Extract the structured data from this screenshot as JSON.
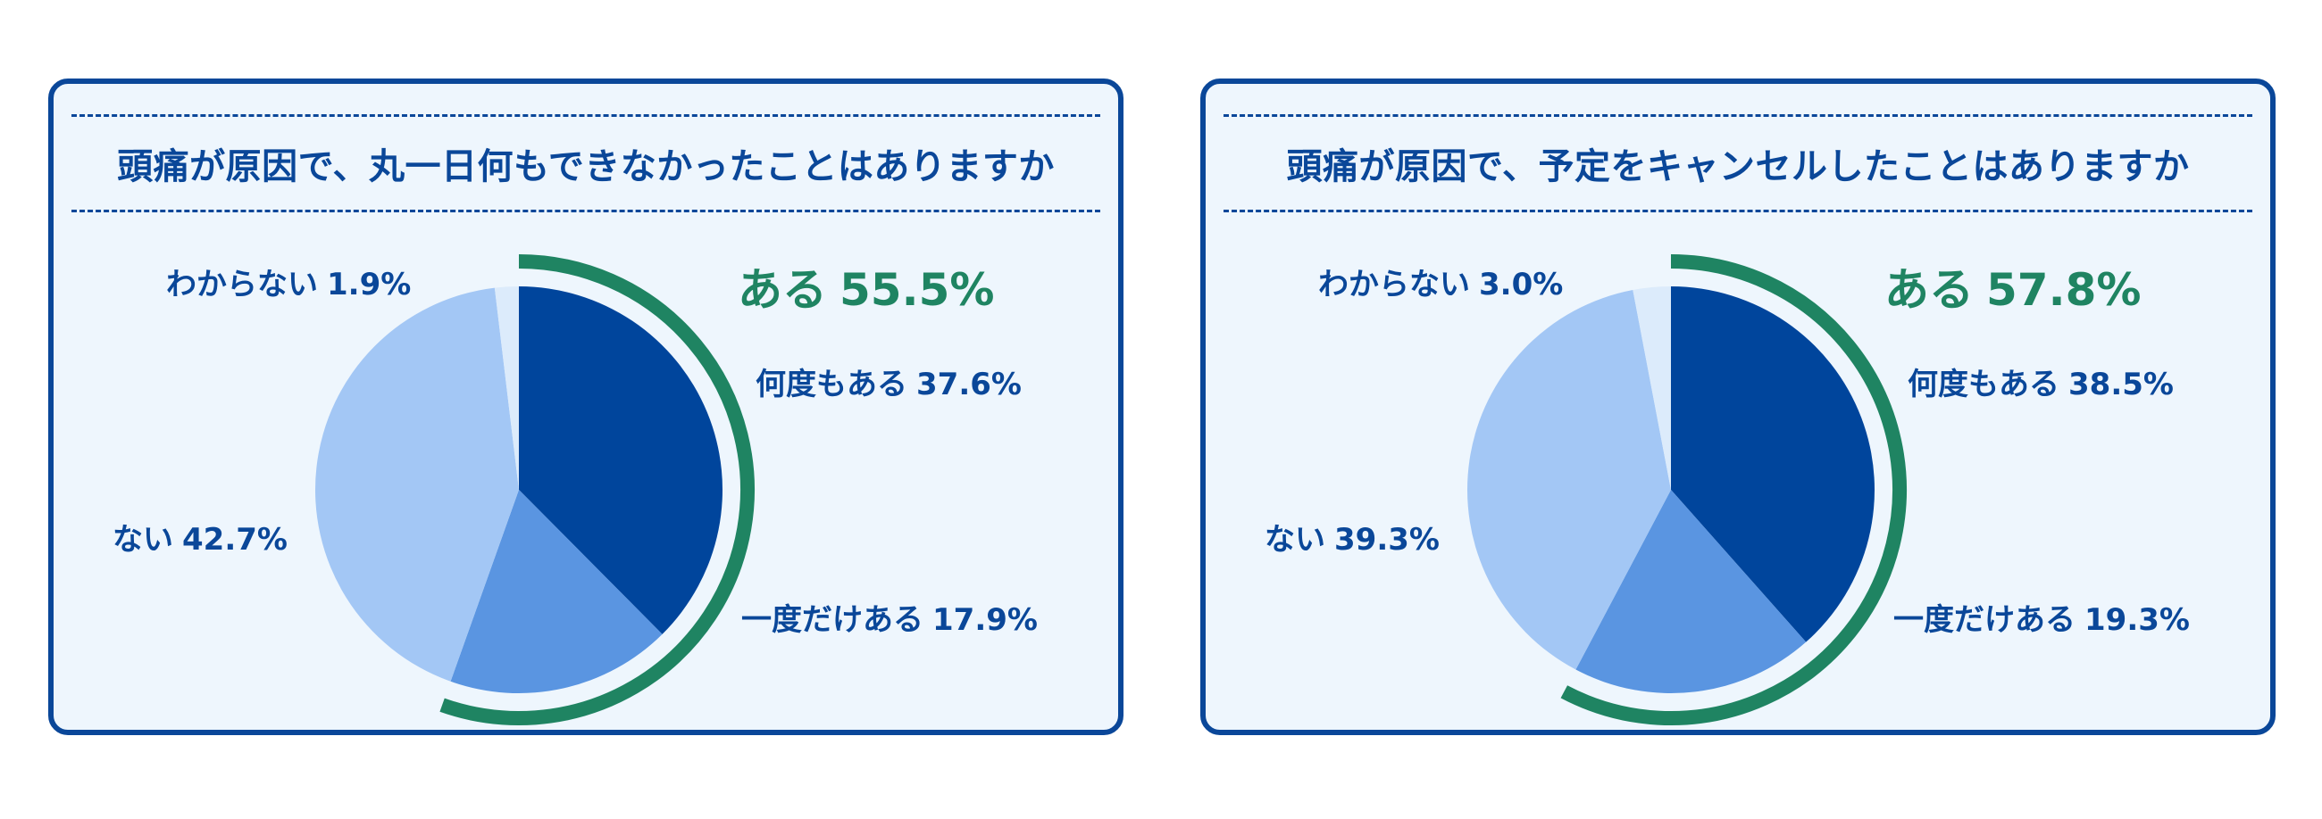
{
  "colors": {
    "border": "#0a4799",
    "panel_bg": "#eef6fd",
    "text": "#0a4799",
    "accent_green": "#1f8462",
    "slice_many": "#00459c",
    "slice_once": "#5a95e1",
    "slice_no": "#a3c7f5",
    "slice_unknown": "#dcebfb"
  },
  "chart_data": [
    {
      "type": "pie",
      "title": "頭痛が原因で、丸一日何もできなかったことはありますか",
      "summary": {
        "label": "ある",
        "value_text": "55.5%",
        "value": 55.5
      },
      "slices": [
        {
          "label": "何度もある",
          "value": 37.6,
          "value_text": "37.6%",
          "color": "#00459c"
        },
        {
          "label": "一度だけある",
          "value": 17.9,
          "value_text": "17.9%",
          "color": "#5a95e1"
        },
        {
          "label": "ない",
          "value": 42.7,
          "value_text": "42.7%",
          "color": "#a3c7f5"
        },
        {
          "label": "わからない",
          "value": 1.9,
          "value_text": "1.9%",
          "color": "#dcebfb"
        }
      ]
    },
    {
      "type": "pie",
      "title": "頭痛が原因で、予定をキャンセルしたことはありますか",
      "summary": {
        "label": "ある",
        "value_text": "57.8%",
        "value": 57.8
      },
      "slices": [
        {
          "label": "何度もある",
          "value": 38.5,
          "value_text": "38.5%",
          "color": "#00459c"
        },
        {
          "label": "一度だけある",
          "value": 19.3,
          "value_text": "19.3%",
          "color": "#5a95e1"
        },
        {
          "label": "ない",
          "value": 39.3,
          "value_text": "39.3%",
          "color": "#a3c7f5"
        },
        {
          "label": "わからない",
          "value": 3.0,
          "value_text": "3.0%",
          "color": "#dcebfb"
        }
      ]
    }
  ]
}
